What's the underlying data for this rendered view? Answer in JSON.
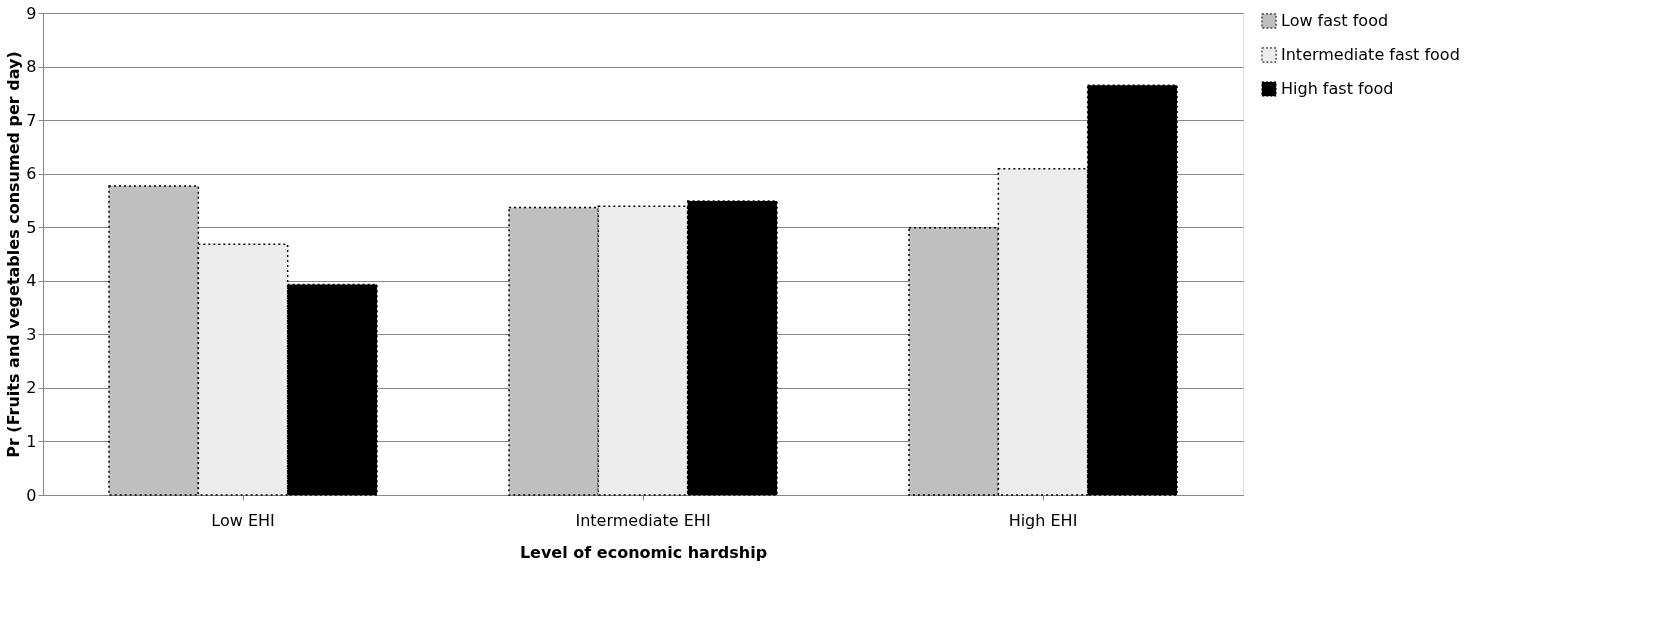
{
  "chart_data": {
    "type": "bar",
    "xlabel": "Level of economic hardship",
    "ylabel": "Pr (Fruits and vegetables consumed per day)",
    "categories": [
      "Low EHI",
      "Intermediate EHI",
      "High EHI"
    ],
    "series": [
      {
        "name": "Low fast food",
        "color": "#bfbfbf",
        "values": [
          5.77,
          5.37,
          4.99
        ]
      },
      {
        "name": "Intermediate fast food",
        "color": "#ececec",
        "values": [
          4.68,
          5.39,
          6.09
        ]
      },
      {
        "name": "High fast food",
        "color": "#000000",
        "values": [
          3.93,
          5.49,
          7.65
        ]
      }
    ],
    "ylim": [
      0,
      9
    ],
    "yticks": [
      0,
      1,
      2,
      3,
      4,
      5,
      6,
      7,
      8,
      9
    ],
    "grid": "y",
    "legend": "right"
  }
}
